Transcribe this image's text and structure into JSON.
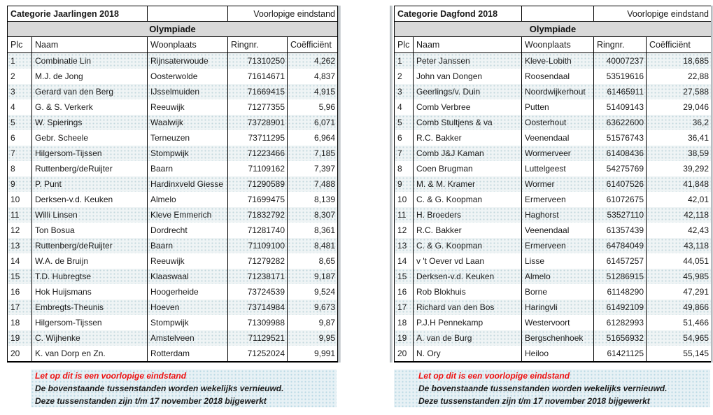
{
  "colors": {
    "band_bg": "#eff4f5",
    "band_dot": "#c3d7dd",
    "subheader_bg": "#d9d9d9",
    "note_bg": "#e7f1f5",
    "note_dot": "#b5d6e2",
    "warning_red": "#ee1111",
    "border": "#000000"
  },
  "tables": [
    {
      "title": "Categorie Jaarlingen 2018",
      "status": "Voorlopige eindstand",
      "group": "Olympiade",
      "columns": [
        "Plc",
        "Naam",
        "Woonplaats",
        "Ringnr.",
        "Coëfficiënt"
      ],
      "rows": [
        [
          "1",
          "Combinatie Lin",
          "Rijnsaterwoude",
          "71310250",
          "4,262"
        ],
        [
          "2",
          "M.J. de Jong",
          "Oosterwolde",
          "71614671",
          "4,837"
        ],
        [
          "3",
          "Gerard van den Berg",
          "IJsselmuiden",
          "71669415",
          "4,915"
        ],
        [
          "4",
          "G. & S. Verkerk",
          "Reeuwijk",
          "71277355",
          "5,96"
        ],
        [
          "5",
          "W. Spierings",
          "Waalwijk",
          "73728901",
          "6,071"
        ],
        [
          "6",
          "Gebr. Scheele",
          "Terneuzen",
          "73711295",
          "6,964"
        ],
        [
          "7",
          "Hilgersom-Tijssen",
          "Stompwijk",
          "71223466",
          "7,185"
        ],
        [
          "8",
          "Ruttenberg/deRuijter",
          "Baarn",
          "71109162",
          "7,397"
        ],
        [
          "9",
          "P. Punt",
          "Hardinxveld Giesse",
          "71290589",
          "7,488"
        ],
        [
          "10",
          "Derksen-v.d. Keuken",
          "Almelo",
          "71699475",
          "8,139"
        ],
        [
          "11",
          "Willi Linsen",
          "Kleve Emmerich",
          "71832792",
          "8,307"
        ],
        [
          "12",
          "Ton Bosua",
          "Dordrecht",
          "71281740",
          "8,361"
        ],
        [
          "13",
          "Ruttenberg/deRuijter",
          "Baarn",
          "71109100",
          "8,481"
        ],
        [
          "14",
          "W.A. de Bruijn",
          "Reeuwijk",
          "71279282",
          "8,65"
        ],
        [
          "15",
          "T.D. Hubregtse",
          "Klaaswaal",
          "71238171",
          "9,187"
        ],
        [
          "16",
          "Hok Huijsmans",
          "Hoogerheide",
          "73724539",
          "9,524"
        ],
        [
          "17",
          "Embregts-Theunis",
          "Hoeven",
          "73714984",
          "9,673"
        ],
        [
          "18",
          "Hilgersom-Tijssen",
          "Stompwijk",
          "71309988",
          "9,87"
        ],
        [
          "19",
          "C. Wijhenke",
          "Amstelveen",
          "71129521",
          "9,95"
        ],
        [
          "20",
          "K. van Dorp en Zn.",
          "Rotterdam",
          "71252024",
          "9,991"
        ]
      ],
      "notes": {
        "warning": "Let op dit is een voorlopige eindstand",
        "line2": "De bovenstaande tussenstanden worden wekelijks vernieuwd.",
        "line3": "Deze tussenstanden zijn t/m 17 november 2018 bijgewerkt"
      }
    },
    {
      "title": "Categorie Dagfond 2018",
      "status": "Voorlopige eindstand",
      "group": "Olympiade",
      "columns": [
        "Plc",
        "Naam",
        "Woonplaats",
        "Ringnr.",
        "Coëfficiënt"
      ],
      "rows": [
        [
          "1",
          "Peter Janssen",
          "Kleve-Lobith",
          "40007237",
          "18,685"
        ],
        [
          "2",
          "John van Dongen",
          "Roosendaal",
          "53519616",
          "22,88"
        ],
        [
          "3",
          "Geerlings/v. Duin",
          "Noordwijkerhout",
          "61465911",
          "27,588"
        ],
        [
          "4",
          "Comb Verbree",
          "Putten",
          "51409143",
          "29,046"
        ],
        [
          "5",
          "Comb Stultjens & va",
          "Oosterhout",
          "63622600",
          "36,2"
        ],
        [
          "6",
          "R.C. Bakker",
          "Veenendaal",
          "51576743",
          "36,41"
        ],
        [
          "7",
          "Comb J&J Kaman",
          "Wormerveer",
          "61408436",
          "38,59"
        ],
        [
          "8",
          "Coen Brugman",
          "Luttelgeest",
          "54275769",
          "39,292"
        ],
        [
          "9",
          "M. & M. Kramer",
          "Wormer",
          "61407526",
          "41,848"
        ],
        [
          "10",
          "C. & G. Koopman",
          "Ermerveen",
          "61072675",
          "42,01"
        ],
        [
          "11",
          "H. Broeders",
          "Haghorst",
          "53527110",
          "42,118"
        ],
        [
          "12",
          "R.C. Bakker",
          "Veenendaal",
          "61357439",
          "42,43"
        ],
        [
          "13",
          "C. & G. Koopman",
          "Ermerveen",
          "64784049",
          "43,118"
        ],
        [
          "14",
          "v 't Oever vd Laan",
          "Lisse",
          "61457257",
          "44,051"
        ],
        [
          "15",
          "Derksen-v.d. Keuken",
          "Almelo",
          "51286915",
          "45,985"
        ],
        [
          "16",
          "Rob Blokhuis",
          "Borne",
          "61148290",
          "47,291"
        ],
        [
          "17",
          "Richard van den Bos",
          "Haringvli",
          "61492109",
          "49,866"
        ],
        [
          "18",
          "P.J.H Pennekamp",
          "Westervoort",
          "61282993",
          "51,466"
        ],
        [
          "19",
          "A. van de Burg",
          "Bergschenhoek",
          "51656932",
          "54,965"
        ],
        [
          "20",
          "N. Ory",
          "Heiloo",
          "61421125",
          "55,145"
        ]
      ],
      "notes": {
        "warning": "Let op dit is een voorlopige eindstand",
        "line2": "De bovenstaande tussenstanden worden wekelijks vernieuwd.",
        "line3": "Deze tussenstanden zijn t/m 17 november 2018 bijgewerkt"
      }
    }
  ]
}
